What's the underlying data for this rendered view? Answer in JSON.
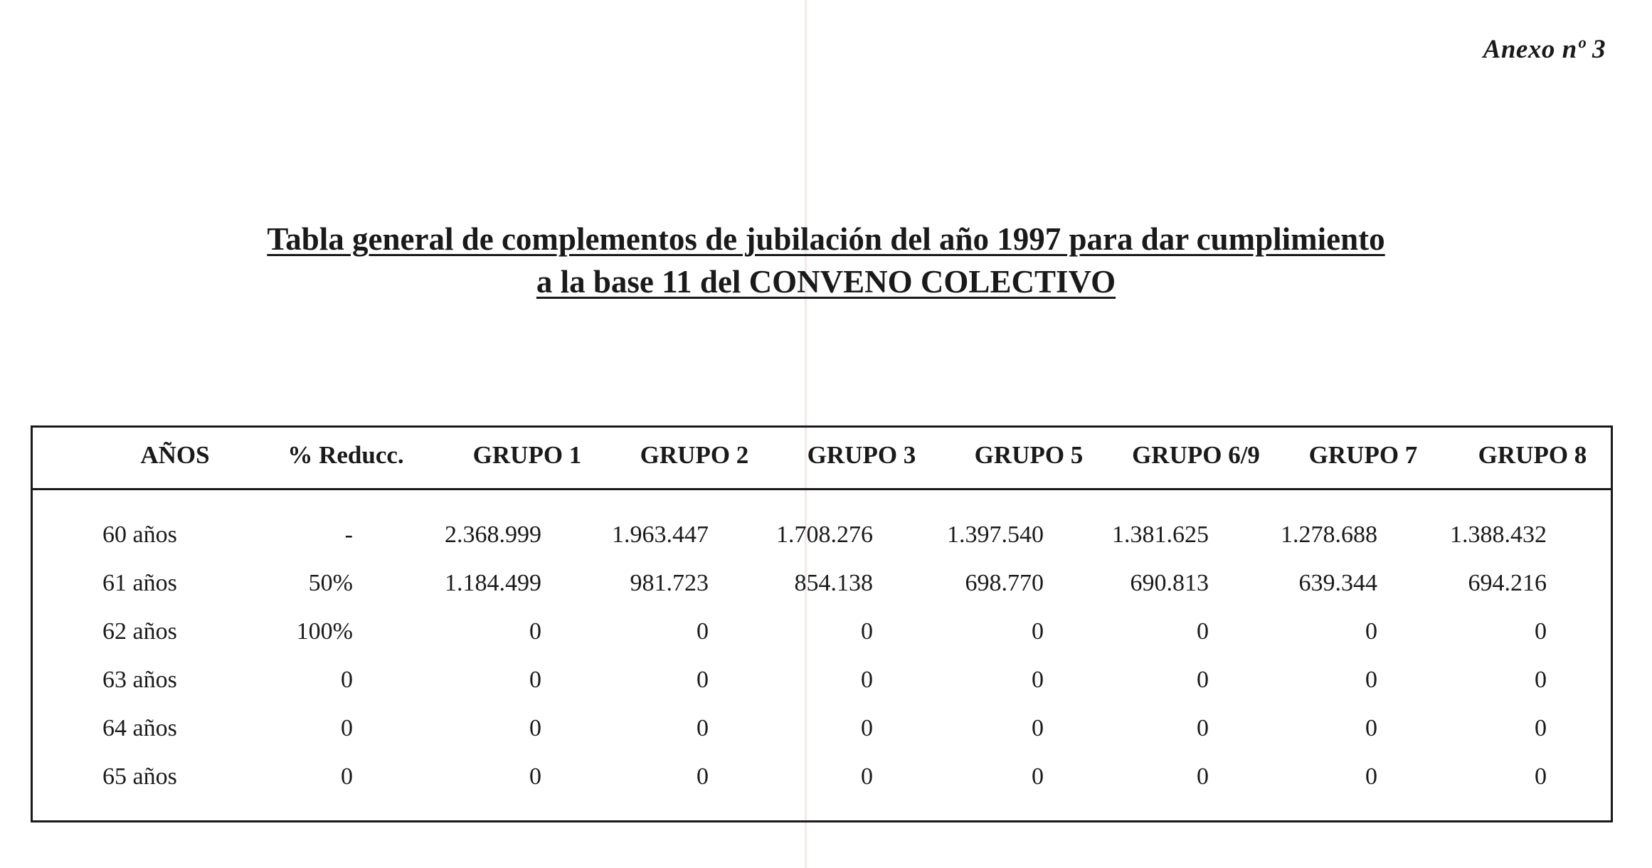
{
  "annex_label": "Anexo nº 3",
  "title_line1": "Tabla general de complementos de jubilación del año 1997 para dar cumplimiento",
  "title_line2": "a la base 11 del CONVENO COLECTIVO",
  "table": {
    "headers": [
      "AÑOS",
      "% Reducc.",
      "GRUPO 1",
      "GRUPO 2",
      "GRUPO 3",
      "GRUPO 5",
      "GRUPO 6/9",
      "GRUPO 7",
      "GRUPO 8"
    ],
    "rows": [
      [
        "60 años",
        "-",
        "2.368.999",
        "1.963.447",
        "1.708.276",
        "1.397.540",
        "1.381.625",
        "1.278.688",
        "1.388.432"
      ],
      [
        "61 años",
        "50%",
        "1.184.499",
        "981.723",
        "854.138",
        "698.770",
        "690.813",
        "639.344",
        "694.216"
      ],
      [
        "62 años",
        "100%",
        "0",
        "0",
        "0",
        "0",
        "0",
        "0",
        "0"
      ],
      [
        "63 años",
        "0",
        "0",
        "0",
        "0",
        "0",
        "0",
        "0",
        "0"
      ],
      [
        "64 años",
        "0",
        "0",
        "0",
        "0",
        "0",
        "0",
        "0",
        "0"
      ],
      [
        "65 años",
        "0",
        "0",
        "0",
        "0",
        "0",
        "0",
        "0",
        "0"
      ]
    ]
  }
}
